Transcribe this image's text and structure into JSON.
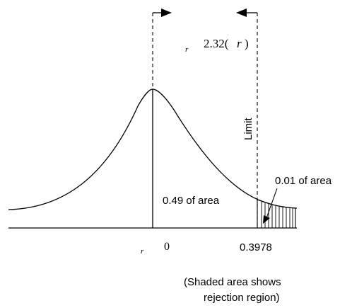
{
  "labels": {
    "sigma_r_small": "r",
    "width_expression": "2.32(",
    "width_expression_var": "r",
    "width_expression_close": ")",
    "limit": "Limit",
    "area_right": "0.01 of area",
    "area_center": "0.49 of area",
    "axis_mu_r": "r",
    "axis_zero": "0",
    "axis_limit_value": "0.3978",
    "note_line1": "(Shaded area shows",
    "note_line2": "rejection region)"
  },
  "colors": {
    "stroke": "#000000",
    "background": "#ffffff"
  },
  "icons": {
    "right_arrow": "arrow-right-icon",
    "left_arrow": "arrow-left-icon"
  }
}
